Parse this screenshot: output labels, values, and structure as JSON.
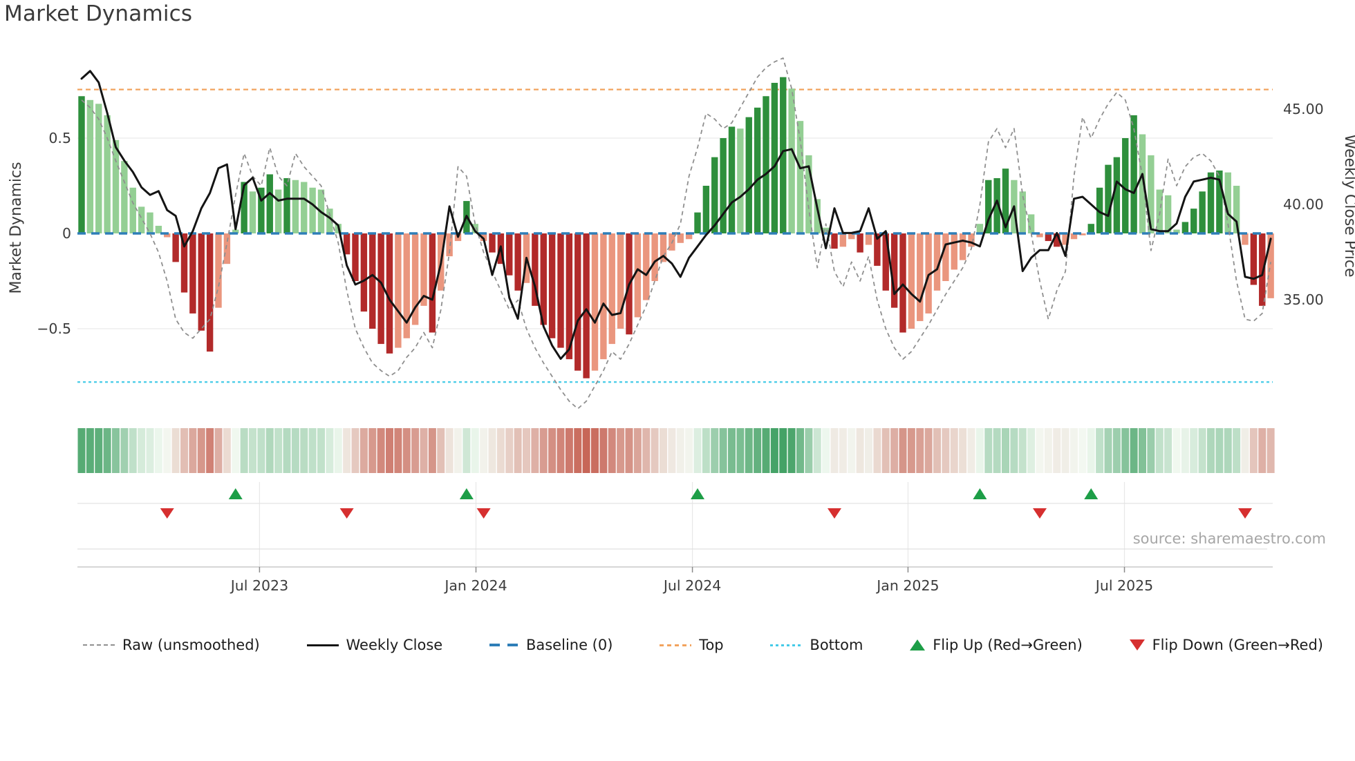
{
  "title": "Market Dynamics",
  "source": "source: sharemaestro.com",
  "axes": {
    "left_label": "Market Dynamics",
    "right_label": "Weekly Close Price",
    "left_ticks": [
      {
        "label": "0.5",
        "value": 0.5
      },
      {
        "label": "0",
        "value": 0
      },
      {
        "label": "−0.5",
        "value": -0.5
      }
    ],
    "right_ticks": [
      {
        "label": "45.00",
        "value": 45
      },
      {
        "label": "40.00",
        "value": 40
      },
      {
        "label": "35.00",
        "value": 35
      }
    ],
    "x_ticks": [
      {
        "label": "Jul 2023",
        "week": 21.8
      },
      {
        "label": "Jan 2024",
        "week": 47.1
      },
      {
        "label": "Jul 2024",
        "week": 72.4
      },
      {
        "label": "Jan 2025",
        "week": 97.6
      },
      {
        "label": "Jul 2025",
        "week": 122.9
      }
    ]
  },
  "legend": [
    {
      "id": "raw",
      "label": "Raw (unsmoothed)"
    },
    {
      "id": "weekly",
      "label": "Weekly Close"
    },
    {
      "id": "baseline",
      "label": "Baseline (0)"
    },
    {
      "id": "top",
      "label": "Top"
    },
    {
      "id": "bottom",
      "label": "Bottom"
    },
    {
      "id": "flip-up",
      "label": "Flip Up (Red→Green)"
    },
    {
      "id": "flip-down",
      "label": "Flip Down (Green→Red)"
    }
  ],
  "colors": {
    "dark_green": "#2e8f3c",
    "light_green": "#94cf94",
    "dark_red": "#b22a2a",
    "light_red": "#ea967e",
    "line_black": "#141414",
    "line_raw": "#8f8f8f",
    "baseline_blue": "#2e7eb8",
    "top_orange": "#f2a35e",
    "bottom_cyan": "#45cbe8",
    "marker_green": "#1d9e47",
    "marker_red": "#d62f2f",
    "heat_green": "#44a266",
    "heat_red": "#c55e50",
    "grid": "#ededed",
    "axis_text": "#3c3c3c"
  },
  "chart_data": {
    "type": "bar",
    "title": "Market Dynamics",
    "xlabel": "",
    "ylabel_left": "Market Dynamics",
    "ylabel_right": "Weekly Close Price",
    "left_range": [
      -1.0,
      1.0
    ],
    "right_range": [
      28.6,
      48.0
    ],
    "baseline": 0,
    "top_threshold": 0.755,
    "bottom_threshold": -0.78,
    "weeks": 140,
    "legend_position": "bottom",
    "grid": "horizontal-only",
    "series": [
      {
        "name": "Oscillator (weekly bars)",
        "axis": "left",
        "values": [
          0.72,
          0.7,
          0.68,
          0.62,
          0.49,
          0.38,
          0.24,
          0.14,
          0.11,
          0.04,
          -0.02,
          -0.15,
          -0.31,
          -0.42,
          -0.51,
          -0.62,
          -0.39,
          -0.16,
          0.02,
          0.27,
          0.22,
          0.24,
          0.31,
          0.23,
          0.29,
          0.28,
          0.27,
          0.24,
          0.23,
          0.13,
          0.05,
          -0.11,
          -0.25,
          -0.41,
          -0.5,
          -0.58,
          -0.63,
          -0.6,
          -0.55,
          -0.48,
          -0.38,
          -0.52,
          -0.3,
          -0.12,
          -0.04,
          0.17,
          0.05,
          -0.04,
          -0.1,
          -0.16,
          -0.22,
          -0.3,
          -0.26,
          -0.38,
          -0.48,
          -0.55,
          -0.6,
          -0.66,
          -0.72,
          -0.76,
          -0.72,
          -0.66,
          -0.58,
          -0.5,
          -0.53,
          -0.44,
          -0.35,
          -0.25,
          -0.15,
          -0.09,
          -0.05,
          -0.03,
          0.11,
          0.25,
          0.4,
          0.5,
          0.56,
          0.55,
          0.61,
          0.66,
          0.72,
          0.79,
          0.82,
          0.76,
          0.59,
          0.41,
          0.18,
          0.03,
          -0.08,
          -0.07,
          -0.03,
          -0.1,
          -0.06,
          -0.17,
          -0.3,
          -0.39,
          -0.52,
          -0.5,
          -0.46,
          -0.42,
          -0.3,
          -0.25,
          -0.19,
          -0.14,
          -0.07,
          0.05,
          0.28,
          0.29,
          0.34,
          0.28,
          0.22,
          0.1,
          -0.02,
          -0.04,
          -0.07,
          -0.06,
          -0.03,
          -0.01,
          0.05,
          0.24,
          0.36,
          0.4,
          0.5,
          0.62,
          0.52,
          0.41,
          0.23,
          0.2,
          0.02,
          0.06,
          0.13,
          0.22,
          0.32,
          0.33,
          0.32,
          0.25,
          -0.06,
          -0.27,
          -0.38,
          -0.34
        ]
      },
      {
        "name": "Raw (unsmoothed)",
        "axis": "left",
        "values": [
          0.7,
          0.66,
          0.6,
          0.5,
          0.38,
          0.27,
          0.16,
          0.08,
          0.0,
          -0.1,
          -0.25,
          -0.45,
          -0.52,
          -0.55,
          -0.5,
          -0.45,
          -0.28,
          -0.05,
          0.2,
          0.42,
          0.3,
          0.25,
          0.45,
          0.3,
          0.25,
          0.42,
          0.35,
          0.3,
          0.25,
          0.1,
          -0.05,
          -0.3,
          -0.5,
          -0.6,
          -0.68,
          -0.72,
          -0.75,
          -0.72,
          -0.65,
          -0.6,
          -0.52,
          -0.6,
          -0.4,
          -0.1,
          0.35,
          0.3,
          0.05,
          -0.1,
          -0.2,
          -0.3,
          -0.4,
          -0.35,
          -0.5,
          -0.6,
          -0.68,
          -0.75,
          -0.82,
          -0.88,
          -0.92,
          -0.88,
          -0.8,
          -0.72,
          -0.62,
          -0.66,
          -0.58,
          -0.48,
          -0.38,
          -0.25,
          -0.12,
          -0.05,
          0.05,
          0.3,
          0.45,
          0.63,
          0.6,
          0.55,
          0.58,
          0.66,
          0.74,
          0.82,
          0.87,
          0.9,
          0.92,
          0.76,
          0.49,
          0.13,
          -0.18,
          0.05,
          -0.2,
          -0.28,
          -0.15,
          -0.25,
          -0.12,
          -0.35,
          -0.5,
          -0.6,
          -0.66,
          -0.62,
          -0.55,
          -0.48,
          -0.4,
          -0.32,
          -0.25,
          -0.18,
          -0.08,
          0.15,
          0.48,
          0.55,
          0.45,
          0.55,
          0.2,
          0.0,
          -0.25,
          -0.45,
          -0.3,
          -0.2,
          0.3,
          0.61,
          0.5,
          0.6,
          0.68,
          0.74,
          0.7,
          0.55,
          0.3,
          -0.09,
          0.1,
          0.39,
          0.25,
          0.35,
          0.4,
          0.42,
          0.38,
          0.3,
          0.05,
          -0.25,
          -0.45,
          -0.46,
          -0.42,
          -0.15
        ]
      },
      {
        "name": "Weekly Close",
        "axis": "right",
        "values": [
          46.6,
          47.0,
          46.4,
          44.8,
          43.0,
          42.3,
          41.7,
          40.9,
          40.5,
          40.7,
          39.7,
          39.4,
          37.8,
          38.6,
          39.8,
          40.6,
          41.9,
          42.1,
          38.7,
          41.0,
          41.4,
          40.2,
          40.6,
          40.2,
          40.3,
          40.3,
          40.3,
          40.0,
          39.6,
          39.3,
          38.9,
          36.8,
          35.8,
          36.0,
          36.3,
          35.9,
          35.0,
          34.4,
          33.8,
          34.6,
          35.2,
          35.0,
          36.9,
          39.9,
          38.3,
          39.4,
          38.6,
          38.2,
          36.3,
          37.8,
          35.1,
          34.0,
          37.2,
          35.7,
          33.6,
          32.6,
          31.9,
          32.4,
          33.9,
          34.5,
          33.8,
          34.8,
          34.2,
          34.3,
          35.8,
          36.6,
          36.3,
          37.0,
          37.3,
          36.9,
          36.2,
          37.2,
          37.8,
          38.4,
          38.9,
          39.5,
          40.1,
          40.4,
          40.8,
          41.3,
          41.6,
          42.0,
          42.8,
          42.9,
          41.9,
          42.0,
          39.8,
          37.7,
          39.8,
          38.5,
          38.5,
          38.6,
          39.8,
          38.2,
          38.6,
          35.3,
          35.8,
          35.3,
          34.9,
          36.3,
          36.6,
          37.9,
          38.0,
          38.1,
          38.0,
          37.8,
          39.2,
          40.2,
          38.8,
          39.9,
          36.5,
          37.2,
          37.6,
          37.6,
          38.5,
          37.3,
          40.3,
          40.4,
          40.0,
          39.6,
          39.4,
          41.2,
          40.8,
          40.6,
          41.6,
          38.7,
          38.6,
          38.6,
          39.0,
          40.4,
          41.2,
          41.3,
          41.4,
          41.3,
          39.5,
          39.1,
          36.2,
          36.1,
          36.3,
          38.2
        ]
      }
    ],
    "flip_up_weeks": [
      19,
      46,
      73,
      106,
      119
    ],
    "flip_down_weeks": [
      11,
      32,
      48,
      89,
      113,
      137
    ],
    "heatmap": "one cell per week, colored by oscillator value (green positive, red negative)"
  }
}
